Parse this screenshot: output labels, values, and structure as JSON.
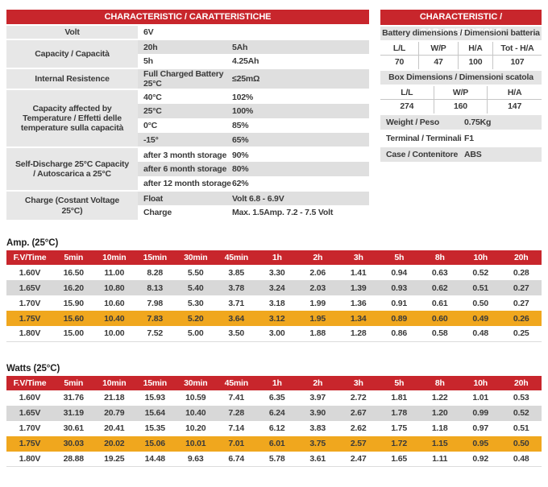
{
  "colors": {
    "header_red": "#c8262c",
    "highlight_orange": "#f0a71e",
    "band_gray": "#d8d8d8",
    "label_gray": "#e7e7e7",
    "text": "#3a3a3a"
  },
  "left_table": {
    "title": "CHARACTERISTIC / CARATTERISTICHE",
    "groups": [
      {
        "label": "Volt",
        "rows": [
          {
            "param": "6V",
            "value": ""
          }
        ]
      },
      {
        "label": "Capacity / Capacità",
        "rows": [
          {
            "param": "20h",
            "value": "5Ah"
          },
          {
            "param": "5h",
            "value": "4.25Ah"
          }
        ]
      },
      {
        "label": "Internal Resistence",
        "rows": [
          {
            "param": "Full Charged Battery 25°C",
            "value": "≤25mΩ"
          }
        ]
      },
      {
        "label": "Capacity affected by Temperature / Effetti delle temperature sulla capacità",
        "rows": [
          {
            "param": "40°C",
            "value": "102%"
          },
          {
            "param": "25°C",
            "value": "100%"
          },
          {
            "param": "0°C",
            "value": "85%"
          },
          {
            "param": "-15°",
            "value": "65%"
          }
        ]
      },
      {
        "label": "Self-Discharge 25°C Capacity / Autoscarica a 25°C",
        "rows": [
          {
            "param": "after 3 month storage",
            "value": "90%"
          },
          {
            "param": "after 6 month storage",
            "value": "80%"
          },
          {
            "param": "after 12 month storage",
            "value": "62%"
          }
        ]
      },
      {
        "label": "Charge  (Costant Voltage 25°C)",
        "rows": [
          {
            "param": "Float",
            "value": "Volt 6.8 - 6.9V"
          },
          {
            "param": "Charge",
            "value": "Max. 1.5Amp. 7.2 - 7.5 Volt"
          }
        ]
      }
    ]
  },
  "right_table": {
    "title": "CHARACTERISTIC / CARATTERISTICHE",
    "battery_dims": {
      "header": "Battery dimensions / Dimensioni batteria",
      "cols": [
        "L/L",
        "W/P",
        "H/A",
        "Tot - H/A"
      ],
      "values": [
        "70",
        "47",
        "100",
        "107"
      ]
    },
    "box_dims": {
      "header": "Box Dimensions / Dimensioni scatola",
      "cols": [
        "L/L",
        "W/P",
        "H/A"
      ],
      "values": [
        "274",
        "160",
        "147"
      ]
    },
    "props": [
      {
        "label": "Weight / Peso",
        "value": "0.75Kg"
      },
      {
        "label": "Terminal / Terminali",
        "value": "F1"
      },
      {
        "label": "Case / Contenitore",
        "value": "ABS"
      }
    ]
  },
  "amp_table": {
    "section_title": "Amp. (25°C)",
    "columns": [
      "F.V/Time",
      "5min",
      "10min",
      "15min",
      "30min",
      "45min",
      "1h",
      "2h",
      "3h",
      "5h",
      "8h",
      "10h",
      "20h"
    ],
    "rows": [
      {
        "fv": "1.60V",
        "highlight": false,
        "values": [
          "16.50",
          "11.00",
          "8.28",
          "5.50",
          "3.85",
          "3.30",
          "2.06",
          "1.41",
          "0.94",
          "0.63",
          "0.52",
          "0.28"
        ]
      },
      {
        "fv": "1.65V",
        "highlight": false,
        "values": [
          "16.20",
          "10.80",
          "8.13",
          "5.40",
          "3.78",
          "3.24",
          "2.03",
          "1.39",
          "0.93",
          "0.62",
          "0.51",
          "0.27"
        ]
      },
      {
        "fv": "1.70V",
        "highlight": false,
        "values": [
          "15.90",
          "10.60",
          "7.98",
          "5.30",
          "3.71",
          "3.18",
          "1.99",
          "1.36",
          "0.91",
          "0.61",
          "0.50",
          "0.27"
        ]
      },
      {
        "fv": "1.75V",
        "highlight": true,
        "values": [
          "15.60",
          "10.40",
          "7.83",
          "5.20",
          "3.64",
          "3.12",
          "1.95",
          "1.34",
          "0.89",
          "0.60",
          "0.49",
          "0.26"
        ]
      },
      {
        "fv": "1.80V",
        "highlight": false,
        "values": [
          "15.00",
          "10.00",
          "7.52",
          "5.00",
          "3.50",
          "3.00",
          "1.88",
          "1.28",
          "0.86",
          "0.58",
          "0.48",
          "0.25"
        ]
      }
    ]
  },
  "watts_table": {
    "section_title": "Watts (25°C)",
    "columns": [
      "F.V/Time",
      "5min",
      "10min",
      "15min",
      "30min",
      "45min",
      "1h",
      "2h",
      "3h",
      "5h",
      "8h",
      "10h",
      "20h"
    ],
    "rows": [
      {
        "fv": "1.60V",
        "highlight": false,
        "values": [
          "31.76",
          "21.18",
          "15.93",
          "10.59",
          "7.41",
          "6.35",
          "3.97",
          "2.72",
          "1.81",
          "1.22",
          "1.01",
          "0.53"
        ]
      },
      {
        "fv": "1.65V",
        "highlight": false,
        "values": [
          "31.19",
          "20.79",
          "15.64",
          "10.40",
          "7.28",
          "6.24",
          "3.90",
          "2.67",
          "1.78",
          "1.20",
          "0.99",
          "0.52"
        ]
      },
      {
        "fv": "1.70V",
        "highlight": false,
        "values": [
          "30.61",
          "20.41",
          "15.35",
          "10.20",
          "7.14",
          "6.12",
          "3.83",
          "2.62",
          "1.75",
          "1.18",
          "0.97",
          "0.51"
        ]
      },
      {
        "fv": "1.75V",
        "highlight": true,
        "values": [
          "30.03",
          "20.02",
          "15.06",
          "10.01",
          "7.01",
          "6.01",
          "3.75",
          "2.57",
          "1.72",
          "1.15",
          "0.95",
          "0.50"
        ]
      },
      {
        "fv": "1.80V",
        "highlight": false,
        "values": [
          "28.88",
          "19.25",
          "14.48",
          "9.63",
          "6.74",
          "5.78",
          "3.61",
          "2.47",
          "1.65",
          "1.11",
          "0.92",
          "0.48"
        ]
      }
    ]
  }
}
